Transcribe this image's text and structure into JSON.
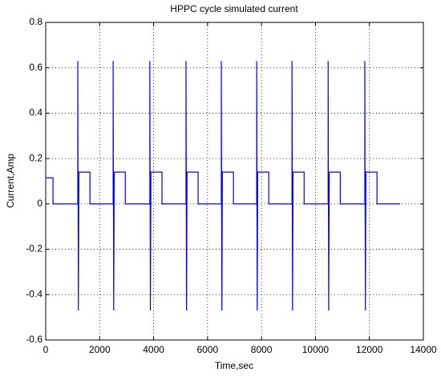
{
  "chart_data": {
    "type": "line",
    "title": "HPPC cycle simulated current",
    "xlabel": "Time,sec",
    "ylabel": "Current,Amp",
    "color": "#0000ff",
    "grid": true,
    "xlim": [
      0,
      14000
    ],
    "xticks": [
      0,
      2000,
      4000,
      6000,
      8000,
      10000,
      12000,
      14000
    ],
    "ylim": [
      -0.6,
      0.8
    ],
    "yticks": [
      -0.6,
      -0.4,
      -0.2,
      0,
      0.2,
      0.4,
      0.6,
      0.8
    ],
    "x": [
      0,
      270,
      270,
      1190,
      1190,
      1210,
      1230,
      1640,
      1640,
      2500,
      2500,
      2520,
      2540,
      2950,
      2950,
      3860,
      3860,
      3880,
      3900,
      4310,
      4310,
      5200,
      5200,
      5220,
      5240,
      5650,
      5650,
      6510,
      6510,
      6530,
      6550,
      6960,
      6960,
      7820,
      7820,
      7840,
      7860,
      8270,
      8270,
      9130,
      9130,
      9150,
      9170,
      9580,
      9580,
      10470,
      10470,
      10490,
      10510,
      10920,
      10920,
      11830,
      11830,
      11850,
      11870,
      12280,
      12280,
      13140
    ],
    "values": [
      0.115,
      0.115,
      0,
      0,
      0.63,
      -0.47,
      0.14,
      0.14,
      0,
      0,
      0.63,
      -0.47,
      0.14,
      0.14,
      0,
      0,
      0.63,
      -0.47,
      0.14,
      0.14,
      0,
      0,
      0.63,
      -0.47,
      0.14,
      0.14,
      0,
      0,
      0.63,
      -0.47,
      0.14,
      0.14,
      0,
      0,
      0.63,
      -0.47,
      0.14,
      0.14,
      0,
      0,
      0.63,
      -0.47,
      0.14,
      0.14,
      0,
      0,
      0.63,
      -0.47,
      0.14,
      0.14,
      0,
      0,
      0.63,
      -0.47,
      0.14,
      0.14,
      0,
      0
    ]
  }
}
